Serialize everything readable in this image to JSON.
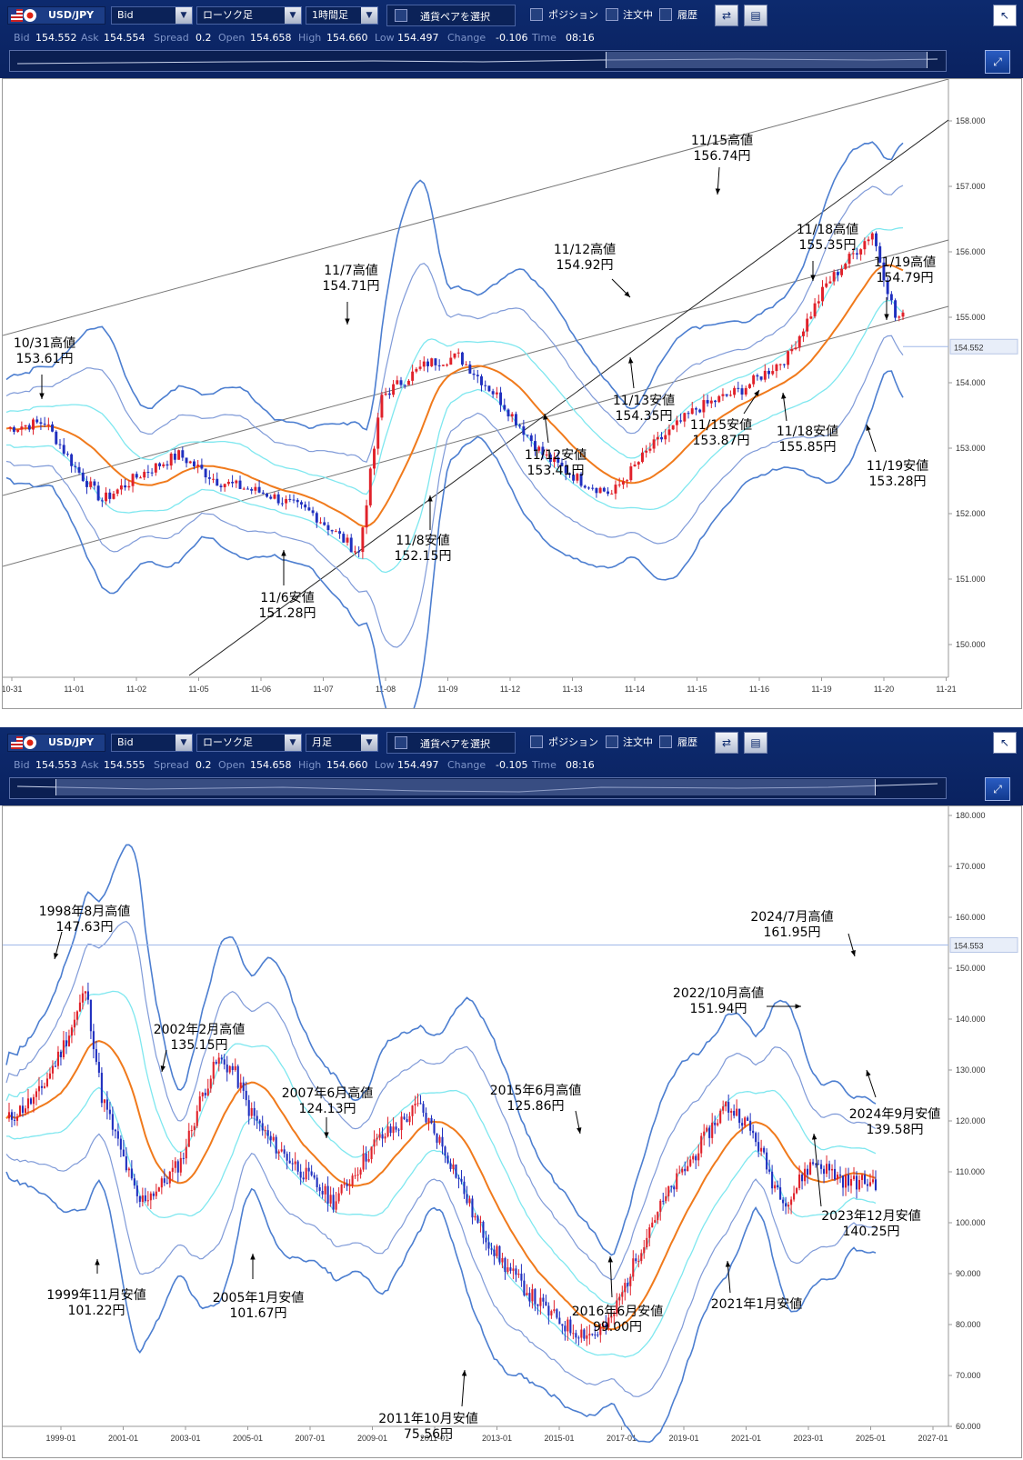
{
  "colors": {
    "toolbar": "#0d2a6e",
    "bull": "#e0212a",
    "bear": "#1f2fbf",
    "ma": "#f07a1c",
    "band1": "#7ee7ef",
    "band2": "#7f9ad8",
    "band3": "#4c7ed0",
    "trend": "#777777"
  },
  "panels": [
    {
      "toolbar": {
        "pair": "USD/JPY",
        "price_type": "Bid",
        "chart_type": "ローソク足",
        "timeframe": "1時間足",
        "select_pair": "通貨ペアを選択",
        "position": "ポジション",
        "orders": "注文中",
        "history": "履歴"
      },
      "quote": {
        "bid_label": "Bid",
        "bid": "154.552",
        "ask_label": "Ask",
        "ask": "154.554",
        "spread_label": "Spread",
        "spread": "0.2",
        "open_label": "Open",
        "open": "154.658",
        "high_label": "High",
        "high": "154.660",
        "low_label": "Low",
        "low": "154.497",
        "change_label": "Change",
        "change": "-0.106",
        "time_label": "Time",
        "time": "08:16"
      },
      "price_label": "154.552",
      "yaxis": {
        "min": 149.5,
        "max": 158.5,
        "ticks": [
          "150.000",
          "151.000",
          "152.000",
          "153.000",
          "154.000",
          "155.000",
          "156.000",
          "157.000",
          "158.000"
        ]
      },
      "xticks": [
        "10-31",
        "11-01",
        "11-02",
        "11-05",
        "11-06",
        "11-07",
        "11-08",
        "11-09",
        "11-12",
        "11-13",
        "11-14",
        "11-15",
        "11-16",
        "11-19",
        "11-20",
        "11-21"
      ],
      "annotations": [
        {
          "l1": "10/31高値",
          "l2": "153.61円"
        },
        {
          "l1": "11/7高値",
          "l2": "154.71円"
        },
        {
          "l1": "11/6安値",
          "l2": "151.28円"
        },
        {
          "l1": "11/8安値",
          "l2": "152.15円"
        },
        {
          "l1": "11/12高値",
          "l2": "154.92円"
        },
        {
          "l1": "11/12安値",
          "l2": "153.41円"
        },
        {
          "l1": "11/13安値",
          "l2": "154.35円"
        },
        {
          "l1": "11/15高値",
          "l2": "156.74円"
        },
        {
          "l1": "11/15安値",
          "l2": "153.87円"
        },
        {
          "l1": "11/18高値",
          "l2": "155.35円"
        },
        {
          "l1": "11/18安値",
          "l2": "155.85円"
        },
        {
          "l1": "11/19高値",
          "l2": "154.79円"
        },
        {
          "l1": "11/19安値",
          "l2": "153.28円"
        }
      ]
    },
    {
      "toolbar": {
        "pair": "USD/JPY",
        "price_type": "Bid",
        "chart_type": "ローソク足",
        "timeframe": "月足",
        "select_pair": "通貨ペアを選択",
        "position": "ポジション",
        "orders": "注文中",
        "history": "履歴"
      },
      "quote": {
        "bid_label": "Bid",
        "bid": "154.553",
        "ask_label": "Ask",
        "ask": "154.555",
        "spread_label": "Spread",
        "spread": "0.2",
        "open_label": "Open",
        "open": "154.658",
        "high_label": "High",
        "high": "154.660",
        "low_label": "Low",
        "low": "154.497",
        "change_label": "Change",
        "change": "-0.105",
        "time_label": "Time",
        "time": "08:16"
      },
      "price_label": "154.553",
      "yaxis": {
        "min": 60,
        "max": 180,
        "ticks": [
          "60.000",
          "70.000",
          "80.000",
          "90.000",
          "100.000",
          "110.000",
          "120.000",
          "130.000",
          "140.000",
          "150.000",
          "160.000",
          "170.000",
          "180.000"
        ]
      },
      "xticks": [
        "1999-01",
        "2001-01",
        "2003-01",
        "2005-01",
        "2007-01",
        "2009-01",
        "2011-01",
        "2013-01",
        "2015-01",
        "2017-01",
        "2019-01",
        "2021-01",
        "2023-01",
        "2025-01",
        "2027-01"
      ],
      "annotations": [
        {
          "l1": "1998年8月高値",
          "l2": "147.63円"
        },
        {
          "l1": "1999年11月安値",
          "l2": "101.22円"
        },
        {
          "l1": "2002年2月高値",
          "l2": "135.15円"
        },
        {
          "l1": "2005年1月安値",
          "l2": "101.67円"
        },
        {
          "l1": "2007年6月高値",
          "l2": "124.13円"
        },
        {
          "l1": "2011年10月安値",
          "l2": "75.56円"
        },
        {
          "l1": "2015年6月高値",
          "l2": "125.86円"
        },
        {
          "l1": "2016年6月安値",
          "l2": "99.00円"
        },
        {
          "l1": "2021年1月安値",
          "l2": ""
        },
        {
          "l1": "2022/10月高値",
          "l2": "151.94円"
        },
        {
          "l1": "2024/7月高値",
          "l2": "161.95円"
        },
        {
          "l1": "2024年9月安値",
          "l2": "139.58円"
        },
        {
          "l1": "2023年12月安値",
          "l2": "140.25円"
        }
      ]
    }
  ]
}
